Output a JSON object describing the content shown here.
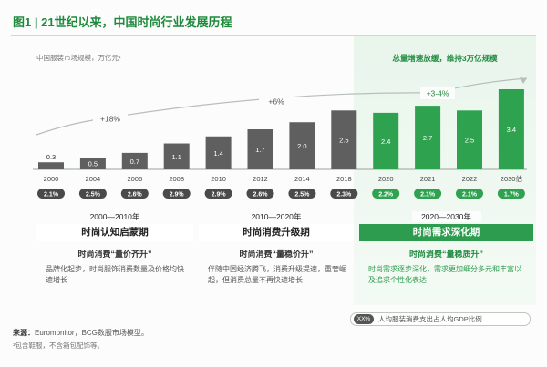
{
  "title": "图1 | 21世纪以来，中国时尚行业发展历程",
  "chart_data": {
    "type": "bar",
    "unit_label": "中国服装市场规模，万亿元¹",
    "categories": [
      "2000",
      "2004",
      "2006",
      "2008",
      "2010",
      "2012",
      "2014",
      "2018",
      "2020",
      "2021",
      "2022",
      "2030估"
    ],
    "values": [
      0.3,
      0.5,
      0.7,
      1.1,
      1.4,
      1.7,
      2.0,
      2.5,
      2.4,
      2.7,
      2.5,
      3.4
    ],
    "value_labels": [
      "0.3",
      "0.5",
      "0.7",
      "1.1",
      "1.4",
      "1.7",
      "2.0",
      "2.5",
      "2.4",
      "2.7",
      "2.5",
      "3.4"
    ],
    "ratios": [
      "2.1%",
      "2.5%",
      "2.6%",
      "2.9%",
      "2.9%",
      "2.6%",
      "2.5%",
      "2.3%",
      "2.2%",
      "2.1%",
      "2.1%",
      "1.7%"
    ],
    "cagr": [
      "+18%",
      "+6%",
      "+3-4%"
    ],
    "ylim": [
      0,
      3.6
    ],
    "colors": {
      "gray": "#5f5f5f",
      "green": "#2fa24f",
      "highlight": "#1f8a3e"
    }
  },
  "highlight_title": "总量增速放缓，维持3万亿规模",
  "eras": [
    {
      "years": "2000—2010年",
      "name": "时尚认知启蒙期",
      "sub": "时尚消费“量价齐升”",
      "desc": "品牌化起步，时尚服饰消费数量及价格均快速增长"
    },
    {
      "years": "2010—2020年",
      "name": "时尚消费升级期",
      "sub": "时尚消费“量稳价升”",
      "desc": "伴随中国经济腾飞，消费升级提速，重奢崛起，但消费总量不再快速增长"
    },
    {
      "years": "2020—2030年",
      "name": "时尚需求深化期",
      "sub": "时尚消费“量稳质升”",
      "desc": "时尚需求逐步深化，需求更加细分多元和丰富以及追求个性化表达"
    }
  ],
  "legend": {
    "pill": "XX%",
    "text": "人均服装消费支出占人均GDP比例"
  },
  "source": {
    "label": "来源：",
    "text": "Euromonitor，BCG数服市场模型。"
  },
  "note": "¹包含鞋服，不含箱包配饰等。"
}
